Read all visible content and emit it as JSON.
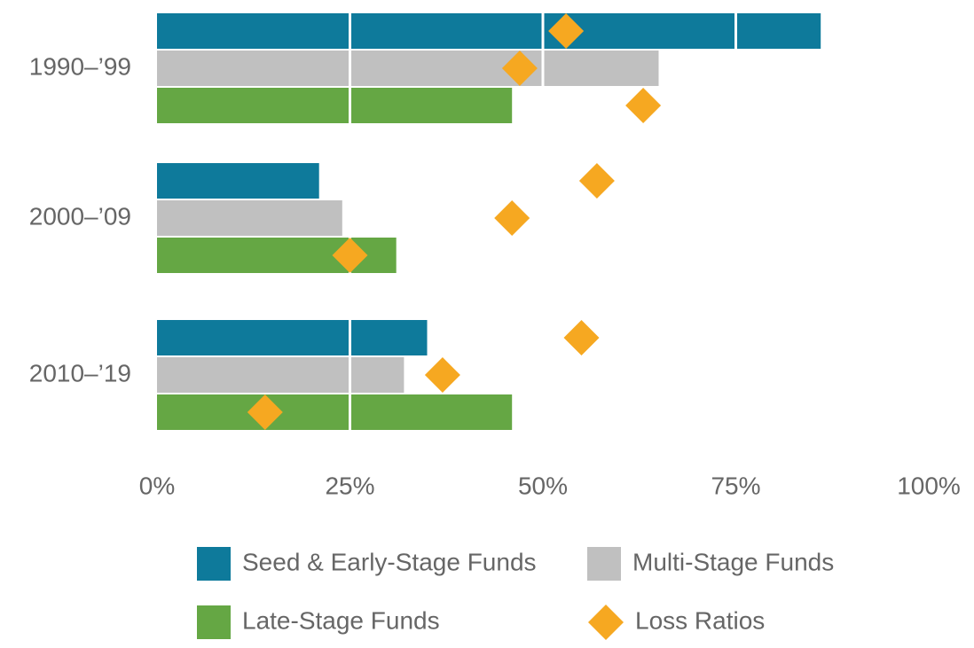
{
  "chart_data": {
    "type": "bar",
    "orientation": "horizontal",
    "categories": [
      "1990–’99",
      "2000–’09",
      "2010–’19"
    ],
    "series": [
      {
        "name": "Seed & Early-Stage Funds",
        "color": "#0e7a9b",
        "values": [
          86,
          21,
          35
        ],
        "loss_ratios": [
          53,
          57,
          55
        ]
      },
      {
        "name": "Multi-Stage Funds",
        "color": "#c0c0c0",
        "values": [
          65,
          24,
          32
        ],
        "loss_ratios": [
          47,
          46,
          37
        ]
      },
      {
        "name": "Late-Stage Funds",
        "color": "#65a744",
        "values": [
          46,
          31,
          46
        ],
        "loss_ratios": [
          63,
          25,
          14
        ]
      }
    ],
    "loss_ratio_marker": {
      "name": "Loss Ratios",
      "color": "#f6a821"
    },
    "xlim": [
      0,
      100
    ],
    "xticks": [
      {
        "value": 0,
        "label": "0%"
      },
      {
        "value": 25,
        "label": "25%"
      },
      {
        "value": 50,
        "label": "50%"
      },
      {
        "value": 75,
        "label": "75%"
      },
      {
        "value": 100,
        "label": "100%"
      }
    ],
    "grid": true
  }
}
